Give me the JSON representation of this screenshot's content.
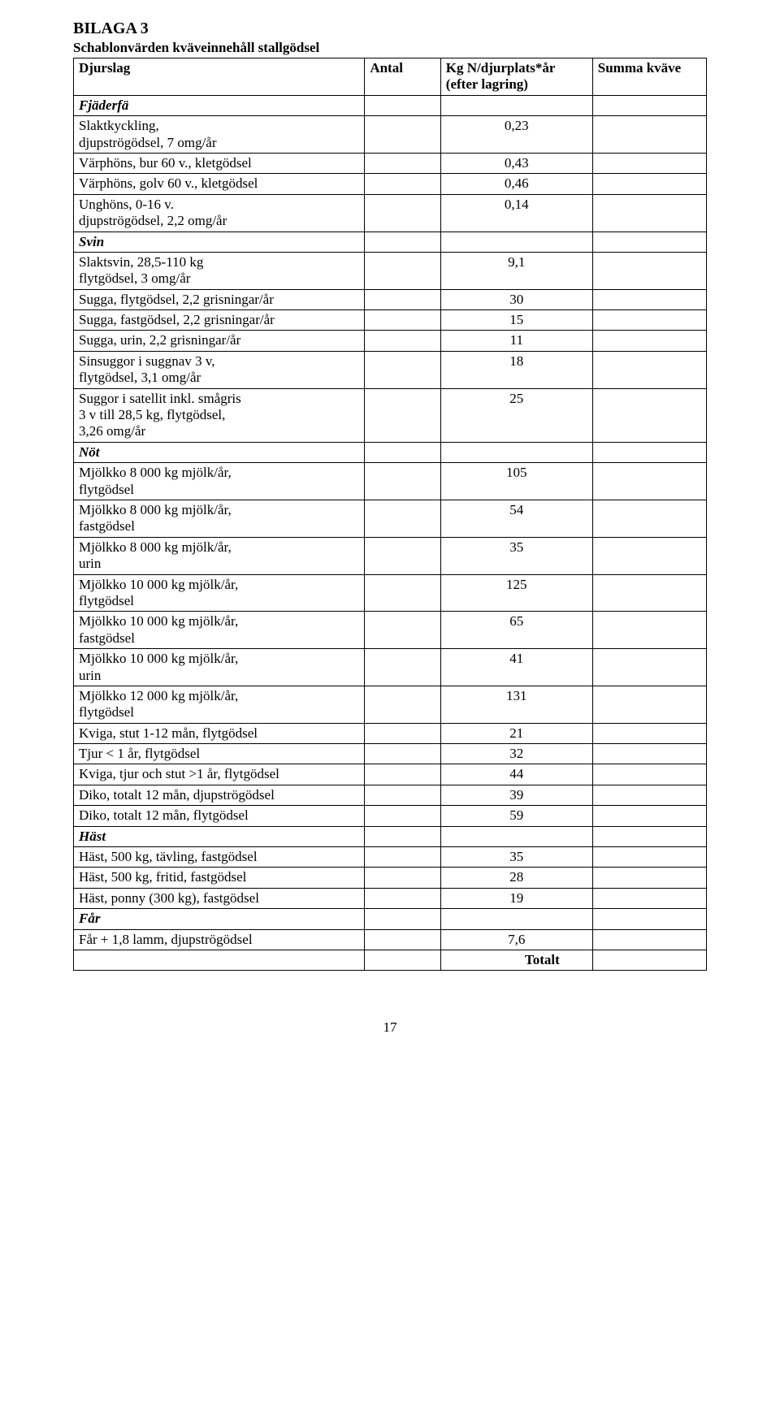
{
  "heading": "BILAGA 3",
  "subtitle": "Schablonvärden kväveinnehåll stallgödsel",
  "headers": {
    "c1": "Djurslag",
    "c2": "Antal",
    "c3_line1": "Kg N/djurplats*år",
    "c3_line2": "(efter lagring)",
    "c4": "Summa kväve"
  },
  "rows": [
    {
      "type": "section",
      "label": "Fjäderfä"
    },
    {
      "type": "data",
      "label_line1": "Slaktkyckling,",
      "label_line2": "djupströgödsel, 7 omg/år",
      "value": "0,23"
    },
    {
      "type": "data",
      "label_line1": "Värphöns, bur 60 v., kletgödsel",
      "value": "0,43"
    },
    {
      "type": "data",
      "label_line1": "Värphöns, golv 60 v., kletgödsel",
      "value": "0,46"
    },
    {
      "type": "data",
      "label_line1": "Unghöns, 0-16 v.",
      "label_line2": "djupströgödsel, 2,2 omg/år",
      "value": "0,14"
    },
    {
      "type": "section",
      "label": "Svin"
    },
    {
      "type": "data",
      "label_line1": "Slaktsvin, 28,5-110 kg",
      "label_line2": "flytgödsel, 3 omg/år",
      "value": "9,1"
    },
    {
      "type": "data",
      "label_line1": "Sugga, flytgödsel, 2,2 grisningar/år",
      "value": "30"
    },
    {
      "type": "data",
      "label_line1": "Sugga, fastgödsel, 2,2 grisningar/år",
      "value": "15"
    },
    {
      "type": "data",
      "label_line1": "Sugga, urin, 2,2 grisningar/år",
      "value": "11"
    },
    {
      "type": "data",
      "label_line1": "Sinsuggor i suggnav 3 v,",
      "label_line2": "flytgödsel, 3,1 omg/år",
      "value": "18"
    },
    {
      "type": "data",
      "label_line1": "Suggor i satellit inkl. smågris",
      "label_line2": "3 v till 28,5 kg, flytgödsel,",
      "label_line3": "3,26 omg/år",
      "value": "25"
    },
    {
      "type": "section",
      "label": "Nöt"
    },
    {
      "type": "data",
      "label_line1": "Mjölkko 8 000 kg mjölk/år,",
      "label_line2": "flytgödsel",
      "value": "105"
    },
    {
      "type": "data",
      "label_line1": "Mjölkko 8 000 kg mjölk/år,",
      "label_line2": "fastgödsel",
      "value": "54"
    },
    {
      "type": "data",
      "label_line1": "Mjölkko 8 000 kg mjölk/år,",
      "label_line2": "urin",
      "value": "35"
    },
    {
      "type": "data",
      "label_line1": "Mjölkko 10 000 kg mjölk/år,",
      "label_line2": "flytgödsel",
      "value": "125"
    },
    {
      "type": "data",
      "label_line1": "Mjölkko 10 000 kg mjölk/år,",
      "label_line2": "fastgödsel",
      "value": "65"
    },
    {
      "type": "data",
      "label_line1": "Mjölkko 10 000 kg mjölk/år,",
      "label_line2": "urin",
      "value": "41"
    },
    {
      "type": "data",
      "label_line1": "Mjölkko 12 000 kg mjölk/år,",
      "label_line2": "flytgödsel",
      "value": "131"
    },
    {
      "type": "data",
      "label_line1": "Kviga, stut 1-12 mån, flytgödsel",
      "value": "21"
    },
    {
      "type": "data",
      "label_line1": "Tjur < 1 år, flytgödsel",
      "value": "32"
    },
    {
      "type": "data",
      "label_line1": "Kviga, tjur och stut >1 år, flytgödsel",
      "value": "44"
    },
    {
      "type": "data",
      "label_line1": "Diko, totalt 12 mån, djupströgödsel",
      "value": "39"
    },
    {
      "type": "data",
      "label_line1": "Diko, totalt 12 mån, flytgödsel",
      "value": "59"
    },
    {
      "type": "section",
      "label": "Häst"
    },
    {
      "type": "data",
      "label_line1": "Häst, 500 kg, tävling, fastgödsel",
      "value": "35"
    },
    {
      "type": "data",
      "label_line1": "Häst, 500 kg, fritid, fastgödsel",
      "value": "28"
    },
    {
      "type": "data",
      "label_line1": "Häst, ponny (300 kg), fastgödsel",
      "value": "19"
    },
    {
      "type": "section",
      "label": "Får"
    },
    {
      "type": "data",
      "label_line1": "Får + 1,8 lamm, djupströgödsel",
      "value": "7,6"
    }
  ],
  "total_label": "Totalt",
  "page_number": "17"
}
